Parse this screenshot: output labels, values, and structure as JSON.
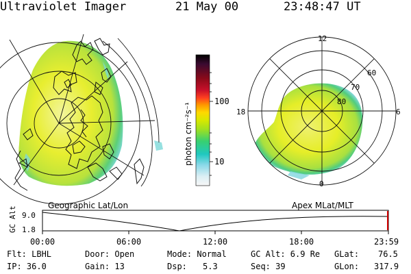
{
  "header": {
    "instrument": "Ultraviolet Imager",
    "date": "21 May 00",
    "time": "23:48:47 UT"
  },
  "geo_panel": {
    "label": "Geographic Lat/Lon"
  },
  "polar_panel": {
    "label": "Apex MLat/MLT",
    "mlt_labels": [
      "12",
      "18",
      "6",
      "0"
    ],
    "lat_labels": [
      "60",
      "70",
      "80"
    ]
  },
  "colorbar": {
    "unit": "photon cm⁻²s⁻¹",
    "ticks": [
      "100",
      "10"
    ],
    "colors": [
      "#000000",
      "#3a0a30",
      "#8a0a1a",
      "#c8102a",
      "#ff4020",
      "#ff9400",
      "#ffd800",
      "#d8e800",
      "#a0e020",
      "#38d070",
      "#20c8c0",
      "#88d8e8",
      "#dceff4",
      "#f7f7f7"
    ]
  },
  "timeline": {
    "axis_label": "GC Alt",
    "ymax": "9.0",
    "ymin": "1.8",
    "ticks": [
      "00:00",
      "06:00",
      "12:00",
      "18:00",
      "23:59"
    ]
  },
  "info": {
    "flt": "Flt: LBHL",
    "ip": "IP: 36.0",
    "door": "Door: Open",
    "gain": "Gain: 13",
    "mode": "Mode: Normal",
    "dsp": "Dsp:",
    "dsp_val": "5.3",
    "gcalt": "GC Alt: 6.9 Re",
    "seq": "Seq: 39",
    "glat": "GLat:",
    "glat_val": "76.5",
    "glon": "GLon:",
    "glon_val": "317.9"
  }
}
